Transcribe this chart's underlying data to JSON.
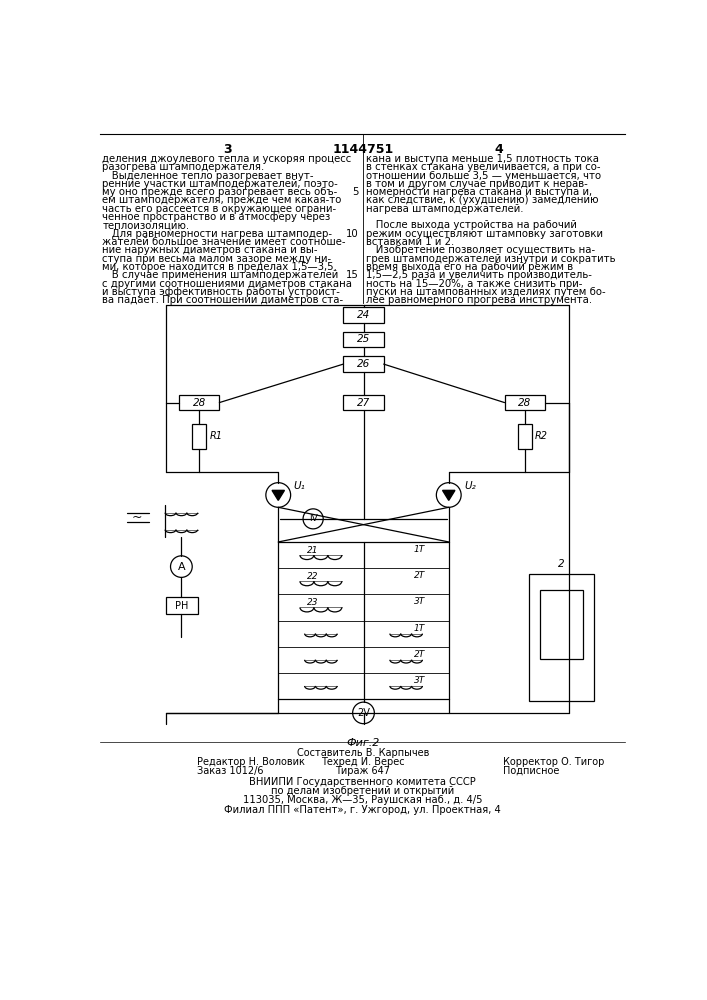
{
  "page_width": 7.07,
  "page_height": 10.0,
  "bg_color": "#ffffff",
  "text_color": "#000000",
  "title_text": "1144751",
  "col3_label": "3",
  "col4_label": "4",
  "fig_label": "Фиг.2",
  "left_col_text": [
    "деления джоулевого тепла и ускоряя процесс",
    "разогрева штамподержателя.",
    "   Выделенное тепло разогревает внут-",
    "ренние участки штамподержателей, поэто-",
    "му оно прежде всего разогревает весь объ-",
    "ем штамподержателя, прежде чем какая-то",
    "часть его рассеется в окружающее ограни-",
    "ченное пространство и в атмосферу через",
    "теплоизоляцию.",
    "   Для равномерности нагрева штамподер-",
    "жателей большое значение имеет соотноше-",
    "ние наружных диаметров стакана и вы-",
    "ступа при весьма малом зазоре между ни-",
    "ми, которое находится в пределах 1,5—3,5.",
    "   В случае применения штамподержателей",
    "с другими соотношениями диаметров стакана",
    "и выступа эффективность работы устройст-",
    "ва падает. При соотношении диаметров ста-"
  ],
  "right_col_text": [
    "кана и выступа меньше 1,5 плотность тока",
    "в стенках стакана увеличивается, а при со-",
    "отношении больше 3,5 — уменьшается, что",
    "в том и другом случае приводит к нерав-",
    "номерности нагрева стакана и выступа и,",
    "как следствие, к (ухудшению) замедлению",
    "нагрева штамподержателей.",
    "",
    "   После выхода устройства на рабочий",
    "режим осуществляют штамповку заготовки",
    "вставками 1 и 2.",
    "   Изобретение позволяет осуществить на-",
    "грев штамподержателей изнутри и сократить",
    "время выхода его на рабочий режим в",
    "1,5—2,5 раза и увеличить производитель-",
    "ность на 15—20%, а также снизить при-",
    "пуски на штампованных изделиях путем бо-",
    "лее равномерного прогрева инструмента."
  ],
  "footer_texts": [
    "Составитель В. Карпычев",
    "Редактор Н. Воловик",
    "Техред И. Верес",
    "Корректор О. Тигор",
    "Заказ 1012/6",
    "Тираж 647",
    "Подписное",
    "ВНИИПИ Государственного комитета СССР",
    "по делам изобретений и открытий",
    "113035, Москва, Ж—35, Раушская наб., д. 4/5",
    "Филиал ППП «Патент», г. Ужгород, ул. Проектная, 4"
  ]
}
